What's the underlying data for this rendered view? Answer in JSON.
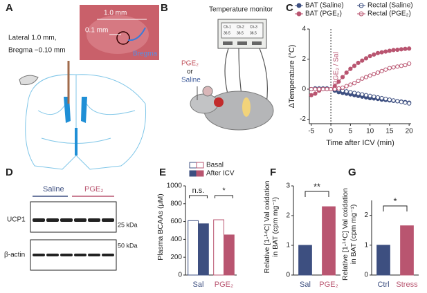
{
  "panel_labels": [
    "A",
    "B",
    "C",
    "D",
    "E",
    "F",
    "G"
  ],
  "panel_a": {
    "photo_scale": "1.0 mm",
    "photo_inset": "0.1 mm",
    "photo_marker": "Bregma",
    "coord_1": "Lateral  1.0 mm,",
    "coord_2": "Bregma  −0.10 mm"
  },
  "panel_b": {
    "monitor": "Temperature monitor",
    "channels": [
      "Ch-1",
      "Ch-2",
      "Ch-3"
    ],
    "readings": [
      "36.5",
      "36.5",
      "36.5"
    ],
    "drug": "PGE₂",
    "or": "or",
    "vehicle": "Saline"
  },
  "panel_d": {
    "groups": [
      "Saline",
      "PGE₂"
    ],
    "blots": [
      "UCP1",
      "β-actin"
    ],
    "markers": [
      "25 kDa",
      "50 kDa"
    ]
  },
  "chart_data": [
    {
      "type": "line",
      "xlabel": "Time after ICV (min)",
      "ylabel": "ΔTemperature (°C)",
      "x": [
        -5,
        -4,
        -3,
        -2,
        -1,
        0,
        1,
        2,
        3,
        4,
        5,
        6,
        7,
        8,
        9,
        10,
        11,
        12,
        13,
        14,
        15,
        16,
        17,
        18,
        19,
        20
      ],
      "xlim": [
        -5.5,
        20.5
      ],
      "xticks": [
        -5,
        0,
        5,
        10,
        15,
        20
      ],
      "ylim": [
        -2.3,
        4
      ],
      "yticks": [
        -2,
        0,
        2,
        4
      ],
      "annotation": "PGE₂ / Sal",
      "series": [
        {
          "name": "BAT (Saline)",
          "color": "#3d4f80",
          "marker": "filled",
          "values": [
            0,
            0,
            0,
            0,
            0,
            0,
            -0.1,
            -0.2,
            -0.25,
            -0.3,
            -0.35,
            -0.4,
            -0.45,
            -0.5,
            -0.55,
            -0.6,
            -0.62,
            -0.65,
            -0.7,
            -0.72,
            -0.75,
            -0.78,
            -0.8,
            -0.83,
            -0.86,
            -0.9
          ]
        },
        {
          "name": "Rectal (Saline)",
          "color": "#3d4f80",
          "marker": "open",
          "values": [
            0,
            0.05,
            0.05,
            0.05,
            0.05,
            0,
            0,
            -0.05,
            -0.1,
            -0.15,
            -0.2,
            -0.25,
            -0.3,
            -0.35,
            -0.4,
            -0.45,
            -0.5,
            -0.55,
            -0.6,
            -0.65,
            -0.7,
            -0.75,
            -0.8,
            -0.85,
            -0.9,
            -0.95
          ]
        },
        {
          "name": "BAT (PGE₂)",
          "color": "#b95570",
          "marker": "filled",
          "values": [
            -0.4,
            -0.3,
            -0.1,
            0,
            0,
            0,
            0.2,
            0.5,
            0.8,
            1.1,
            1.35,
            1.55,
            1.75,
            1.9,
            2.05,
            2.2,
            2.3,
            2.4,
            2.45,
            2.5,
            2.55,
            2.6,
            2.62,
            2.65,
            2.68,
            2.7
          ]
        },
        {
          "name": "Rectal (PGE₂)",
          "color": "#b95570",
          "marker": "open",
          "values": [
            0,
            0,
            0,
            0,
            0,
            0,
            0,
            0.05,
            0.1,
            0.2,
            0.3,
            0.4,
            0.55,
            0.7,
            0.8,
            0.9,
            1.0,
            1.1,
            1.2,
            1.3,
            1.4,
            1.45,
            1.5,
            1.55,
            1.6,
            1.7
          ]
        }
      ]
    },
    {
      "type": "bar",
      "ylabel": [
        "Plasma BCAAs (μM)"
      ],
      "categories": [
        "Sal",
        "PGE₂"
      ],
      "colors": [
        "#3d4f80",
        "#b95570"
      ],
      "ylim": [
        0,
        1000
      ],
      "yticks": [
        0,
        200,
        400,
        600,
        800,
        1000
      ],
      "annotations": [
        "n.s.",
        "*"
      ],
      "series": [
        {
          "name": "Basal",
          "style": "open",
          "values": [
            610,
            620
          ]
        },
        {
          "name": "After ICV",
          "style": "solid",
          "values": [
            575,
            450
          ]
        }
      ]
    },
    {
      "type": "bar",
      "ylabel": [
        "Relative [1-¹⁴C] Val oxidation",
        "in BAT (cpm mg⁻¹)"
      ],
      "categories": [
        "Sal",
        "PGE₂"
      ],
      "colors": [
        "#3d4f80",
        "#b95570"
      ],
      "ylim": [
        0,
        3
      ],
      "yticks": [
        0,
        1,
        2,
        3
      ],
      "annotations": [
        "**"
      ],
      "values": [
        1.0,
        2.3
      ]
    },
    {
      "type": "bar",
      "ylabel": [
        "Relative [1-¹⁴C] Val oxidation",
        "in BAT (cpm mg⁻¹)"
      ],
      "categories": [
        "Ctrl",
        "Stress"
      ],
      "colors": [
        "#3d4f80",
        "#b95570"
      ],
      "ylim": [
        0,
        2.5
      ],
      "yticks": [
        0,
        1,
        2
      ],
      "annotations": [
        "*"
      ],
      "values": [
        1.0,
        1.65
      ]
    }
  ]
}
